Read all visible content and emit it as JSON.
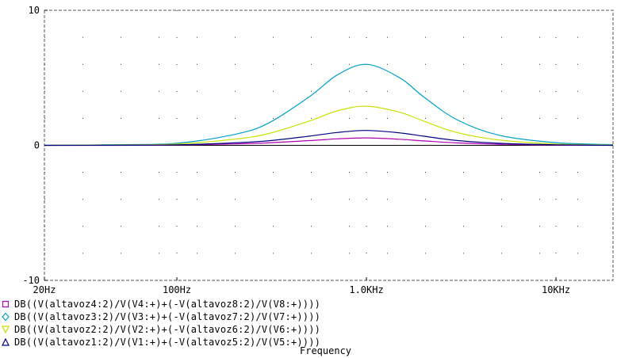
{
  "chart_data": {
    "type": "line",
    "xlabel": "Frequency",
    "ylabel": "",
    "xscale": "log",
    "xlim": [
      20,
      20000
    ],
    "ylim": [
      -10,
      10
    ],
    "grid": "dotted",
    "legend_placement": "bottom-left",
    "x_ticks": [
      {
        "value": 20,
        "label": "20Hz"
      },
      {
        "value": 100,
        "label": "100Hz"
      },
      {
        "value": 1000,
        "label": "1.0KHz"
      },
      {
        "value": 10000,
        "label": "10KHz"
      }
    ],
    "y_ticks": [
      {
        "value": 10,
        "label": "10"
      },
      {
        "value": 0,
        "label": "0"
      },
      {
        "value": -10,
        "label": "-10"
      }
    ],
    "x": [
      20,
      50,
      100,
      200,
      300,
      500,
      700,
      1000,
      1500,
      2000,
      3000,
      5000,
      10000,
      20000
    ],
    "series": [
      {
        "name": "DB((V(altavoz4:2)/V(V4:+)+(-V(altavoz8:2)/V(V8:+))))",
        "marker": "square",
        "color": "#b000b0",
        "values": [
          0,
          0,
          0.03,
          0.1,
          0.18,
          0.35,
          0.48,
          0.55,
          0.45,
          0.33,
          0.18,
          0.08,
          0.02,
          0
        ]
      },
      {
        "name": "DB((V(altavoz3:2)/V(V3:+)+(-V(altavoz7:2)/V(V7:+))))",
        "marker": "diamond",
        "color": "#00a0c8",
        "values": [
          0,
          0.05,
          0.15,
          0.8,
          1.6,
          3.6,
          5.2,
          6.0,
          5.0,
          3.6,
          1.9,
          0.75,
          0.2,
          0.05
        ]
      },
      {
        "name": "DB((V(altavoz2:2)/V(V2:+)+(-V(altavoz6:2)/V(V6:+))))",
        "marker": "triangle-down",
        "color": "#c8e000",
        "values": [
          0,
          0.03,
          0.1,
          0.45,
          0.85,
          1.8,
          2.55,
          2.9,
          2.45,
          1.8,
          0.95,
          0.4,
          0.1,
          0.02
        ]
      },
      {
        "name": "DB((V(altavoz1:2)/V(V1:+)+(-V(altavoz5:2)/V(V5:+))))",
        "marker": "triangle-up",
        "color": "#000080",
        "values": [
          0,
          0.01,
          0.04,
          0.18,
          0.33,
          0.68,
          0.95,
          1.1,
          0.92,
          0.68,
          0.36,
          0.15,
          0.04,
          0
        ]
      }
    ]
  }
}
